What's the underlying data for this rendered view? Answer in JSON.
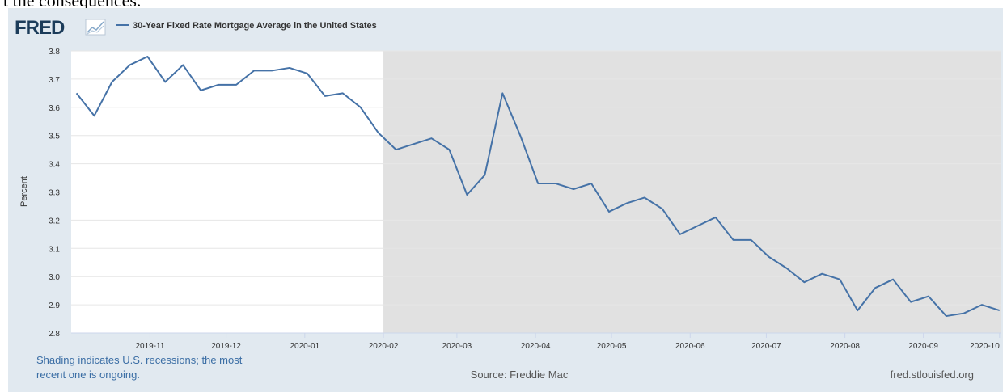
{
  "page_text": "t the consequences.",
  "logo": "FRED",
  "chart_data": {
    "type": "line",
    "y_label": "Percent",
    "series": [
      {
        "name": "30-Year Fixed Rate Mortgage Average in the United States",
        "color": "#4572a7",
        "values": [
          3.65,
          3.57,
          3.69,
          3.75,
          3.78,
          3.69,
          3.75,
          3.66,
          3.68,
          3.68,
          3.73,
          3.73,
          3.74,
          3.72,
          3.64,
          3.65,
          3.6,
          3.51,
          3.45,
          3.47,
          3.49,
          3.45,
          3.29,
          3.36,
          3.65,
          3.5,
          3.33,
          3.33,
          3.31,
          3.33,
          3.23,
          3.26,
          3.28,
          3.24,
          3.15,
          3.18,
          3.21,
          3.13,
          3.13,
          3.07,
          3.03,
          2.98,
          3.01,
          2.99,
          2.88,
          2.96,
          2.99,
          2.91,
          2.93,
          2.86,
          2.87,
          2.9,
          2.88
        ]
      }
    ],
    "xlim": [
      -0.3,
      52.1
    ],
    "xticks": [
      {
        "value": 4.14,
        "label": "2019-11"
      },
      {
        "value": 8.43,
        "label": "2019-12"
      },
      {
        "value": 12.86,
        "label": "2020-01"
      },
      {
        "value": 17.29,
        "label": "2020-02"
      },
      {
        "value": 21.43,
        "label": "2020-03"
      },
      {
        "value": 25.86,
        "label": "2020-04"
      },
      {
        "value": 30.14,
        "label": "2020-05"
      },
      {
        "value": 34.57,
        "label": "2020-06"
      },
      {
        "value": 38.86,
        "label": "2020-07"
      },
      {
        "value": 43.29,
        "label": "2020-08"
      },
      {
        "value": 47.71,
        "label": "2020-09"
      },
      {
        "value": 52.0,
        "label": "2020-10"
      }
    ],
    "ylim": [
      2.8,
      3.8
    ],
    "yticks": [
      2.8,
      2.9,
      {
        "value": 3,
        "label": "3.0"
      },
      3.1,
      3.2,
      3.3,
      3.4,
      3.5,
      3.6,
      3.7,
      3.8
    ],
    "grid": true,
    "shading": [
      {
        "start": 17.29,
        "end": 52.1,
        "color": "#e1e1e1"
      }
    ],
    "note": "Shading indicates U.S. recessions; the most",
    "note_line2": "recent one is ongoing.",
    "source": "Source: Freddie Mac",
    "site": "fred.stlouisfed.org"
  }
}
